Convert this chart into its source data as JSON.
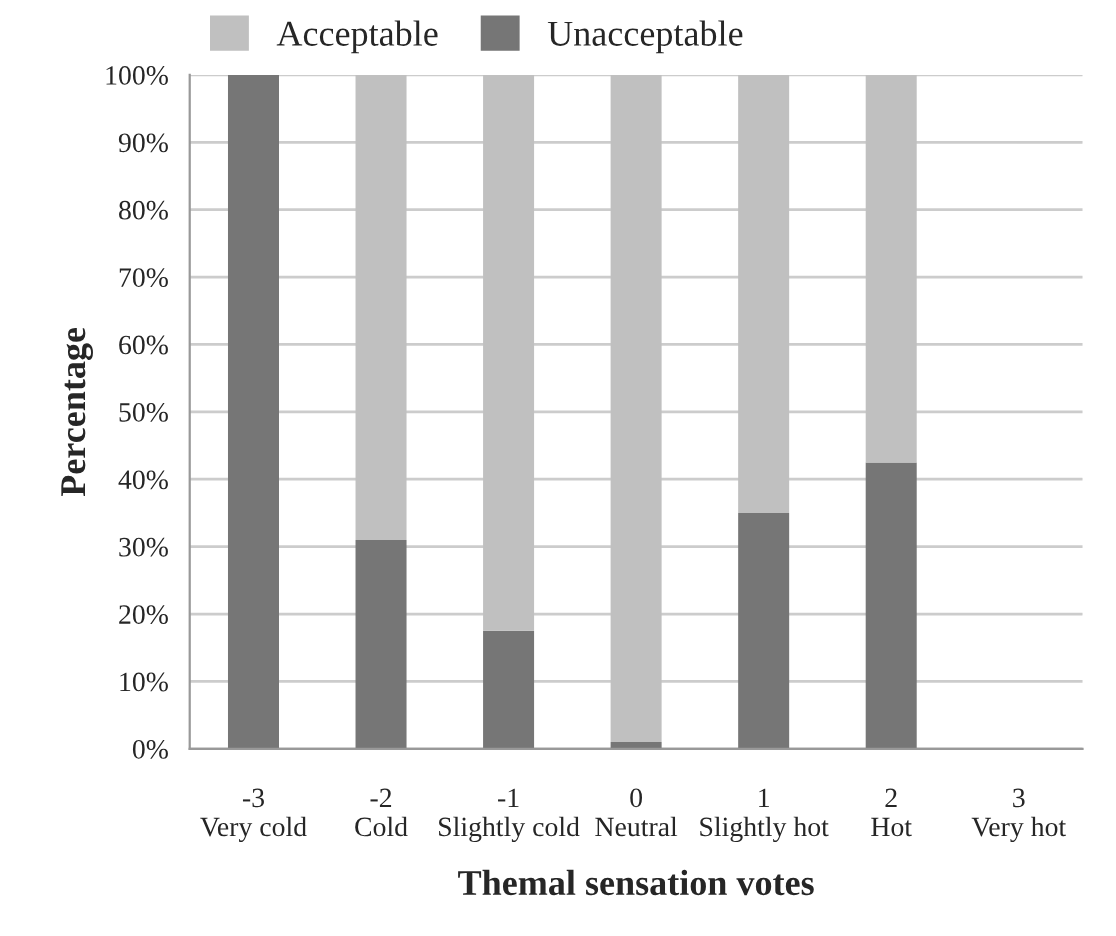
{
  "chart_data": {
    "type": "bar",
    "stacked": true,
    "xlabel": "Themal sensation votes",
    "ylabel": "Percentage",
    "categories": [
      "-3\nVery cold",
      "-2\nCold",
      "-1\nSlightly cold",
      "0\nNeutral",
      "1\nSlightly hot",
      "2\nHot",
      "3\nVery hot"
    ],
    "series": [
      {
        "name": "Unacceptable",
        "color": "#767676",
        "values": [
          100,
          31,
          17.5,
          1,
          35,
          42.5,
          null
        ]
      },
      {
        "name": "Acceptable",
        "color": "#c0c0c0",
        "values": [
          null,
          69,
          82.5,
          99,
          65,
          57.5,
          null
        ]
      }
    ],
    "ylim": [
      0,
      100
    ],
    "yticks": [
      {
        "value": 0,
        "label": "0%"
      },
      {
        "value": 10,
        "label": "10%"
      },
      {
        "value": 20,
        "label": "20%"
      },
      {
        "value": 30,
        "label": "30%"
      },
      {
        "value": 40,
        "label": "40%"
      },
      {
        "value": 50,
        "label": "50%"
      },
      {
        "value": 60,
        "label": "60%"
      },
      {
        "value": 70,
        "label": "70%"
      },
      {
        "value": 80,
        "label": "80%"
      },
      {
        "value": 90,
        "label": "90%"
      },
      {
        "value": 100,
        "label": "100%"
      }
    ],
    "grid": "y",
    "legend": "top"
  }
}
